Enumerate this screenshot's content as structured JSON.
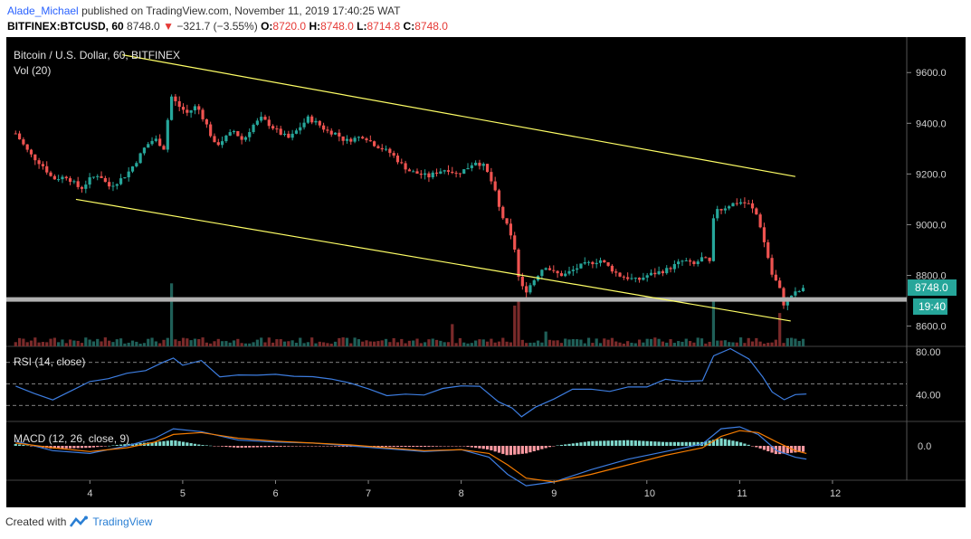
{
  "header": {
    "author": "Alade_Michael",
    "published_text": "published on TradingView.com, November 11, 2019 17:40:25 WAT",
    "symbol": "BITFINEX:BTCUSD, 60",
    "last": "8748.0",
    "change_arrow": "▼",
    "change": "−321.7 (−3.55%)",
    "o_label": "O:",
    "o": "8720.0",
    "h_label": "H:",
    "h": "8748.0",
    "l_label": "L:",
    "l": "8714.8",
    "c_label": "C:",
    "c": "8748.0"
  },
  "main_pane": {
    "title": "Bitcoin / U.S. Dollar, 60, BITFINEX",
    "vol_label": "Vol (20)",
    "price_badge": "8748.0",
    "timer_badge": "19:40"
  },
  "rsi_pane": {
    "label": "RSI (14, close)"
  },
  "macd_pane": {
    "label": "MACD (12, 26, close, 9)"
  },
  "footer": {
    "created_with": "Created with",
    "brand": "TradingView"
  },
  "colors": {
    "background": "#000000",
    "up": "#26a69a",
    "down": "#ef5350",
    "channel": "#ffff66",
    "support": "#b0b0b0",
    "rsi": "#3d7de0",
    "macd": "#3d7de0",
    "signal": "#f57c00"
  },
  "chart_data": [
    {
      "type": "candlestick",
      "title": "Bitcoin / U.S. Dollar, 60, BITFINEX",
      "x_ticks": [
        "4",
        "5",
        "6",
        "7",
        "8",
        "9",
        "10",
        "11",
        "12"
      ],
      "y_ticks": [
        "9600.0",
        "9400.0",
        "9200.0",
        "9000.0",
        "8800.0",
        "8600.0"
      ],
      "ylim": [
        8520,
        9740
      ],
      "close_path": [
        [
          3.2,
          9360
        ],
        [
          3.35,
          9280
        ],
        [
          3.5,
          9230
        ],
        [
          3.6,
          9180
        ],
        [
          3.75,
          9190
        ],
        [
          3.9,
          9140
        ],
        [
          4.0,
          9180
        ],
        [
          4.1,
          9200
        ],
        [
          4.2,
          9150
        ],
        [
          4.3,
          9170
        ],
        [
          4.4,
          9200
        ],
        [
          4.5,
          9250
        ],
        [
          4.6,
          9310
        ],
        [
          4.7,
          9340
        ],
        [
          4.8,
          9300
        ],
        [
          4.87,
          9510
        ],
        [
          4.95,
          9470
        ],
        [
          5.05,
          9440
        ],
        [
          5.15,
          9470
        ],
        [
          5.25,
          9400
        ],
        [
          5.35,
          9310
        ],
        [
          5.45,
          9340
        ],
        [
          5.55,
          9370
        ],
        [
          5.65,
          9330
        ],
        [
          5.75,
          9390
        ],
        [
          5.85,
          9420
        ],
        [
          5.95,
          9390
        ],
        [
          6.05,
          9360
        ],
        [
          6.15,
          9340
        ],
        [
          6.25,
          9380
        ],
        [
          6.35,
          9420
        ],
        [
          6.45,
          9400
        ],
        [
          6.55,
          9370
        ],
        [
          6.65,
          9360
        ],
        [
          6.75,
          9330
        ],
        [
          6.85,
          9340
        ],
        [
          6.95,
          9350
        ],
        [
          7.05,
          9320
        ],
        [
          7.15,
          9300
        ],
        [
          7.25,
          9280
        ],
        [
          7.35,
          9240
        ],
        [
          7.45,
          9210
        ],
        [
          7.55,
          9200
        ],
        [
          7.65,
          9190
        ],
        [
          7.75,
          9210
        ],
        [
          7.85,
          9220
        ],
        [
          7.95,
          9200
        ],
        [
          8.05,
          9220
        ],
        [
          8.15,
          9250
        ],
        [
          8.25,
          9230
        ],
        [
          8.35,
          9150
        ],
        [
          8.42,
          9050
        ],
        [
          8.5,
          8990
        ],
        [
          8.58,
          8900
        ],
        [
          8.63,
          8760
        ],
        [
          8.7,
          8740
        ],
        [
          8.8,
          8790
        ],
        [
          8.9,
          8840
        ],
        [
          9.0,
          8810
        ],
        [
          9.1,
          8800
        ],
        [
          9.2,
          8820
        ],
        [
          9.3,
          8840
        ],
        [
          9.4,
          8850
        ],
        [
          9.5,
          8860
        ],
        [
          9.6,
          8830
        ],
        [
          9.7,
          8800
        ],
        [
          9.8,
          8790
        ],
        [
          9.9,
          8780
        ],
        [
          10.0,
          8800
        ],
        [
          10.1,
          8810
        ],
        [
          10.2,
          8820
        ],
        [
          10.3,
          8840
        ],
        [
          10.4,
          8860
        ],
        [
          10.5,
          8840
        ],
        [
          10.6,
          8870
        ],
        [
          10.68,
          8850
        ],
        [
          10.73,
          9070
        ],
        [
          10.8,
          9060
        ],
        [
          10.9,
          9080
        ],
        [
          11.0,
          9090
        ],
        [
          11.1,
          9080
        ],
        [
          11.2,
          9030
        ],
        [
          11.25,
          8950
        ],
        [
          11.3,
          8880
        ],
        [
          11.35,
          8800
        ],
        [
          11.42,
          8760
        ],
        [
          11.48,
          8680
        ],
        [
          11.55,
          8720
        ],
        [
          11.65,
          8740
        ],
        [
          11.72,
          8748
        ]
      ],
      "volume_spikes": [
        [
          4.87,
          0.85
        ],
        [
          8.58,
          0.55
        ],
        [
          8.6,
          0.62
        ],
        [
          10.7,
          0.62
        ],
        [
          11.45,
          0.45
        ],
        [
          8.9,
          0.2
        ],
        [
          7.9,
          0.3
        ]
      ],
      "channel_upper": [
        [
          4.35,
          9670
        ],
        [
          11.6,
          9190
        ]
      ],
      "channel_lower": [
        [
          3.85,
          9100
        ],
        [
          11.55,
          8620
        ]
      ],
      "support_level": 8705,
      "last_price": 8748.0
    },
    {
      "type": "line",
      "title": "RSI (14, close)",
      "y_ticks": [
        "80.00",
        "40.00"
      ],
      "ylim": [
        15,
        85
      ],
      "levels": [
        70,
        50,
        30
      ],
      "values": [
        [
          3.2,
          48
        ],
        [
          3.4,
          42
        ],
        [
          3.6,
          38
        ],
        [
          3.8,
          45
        ],
        [
          4.0,
          50
        ],
        [
          4.2,
          55
        ],
        [
          4.4,
          58
        ],
        [
          4.6,
          62
        ],
        [
          4.8,
          68
        ],
        [
          4.9,
          72
        ],
        [
          5.0,
          65
        ],
        [
          5.2,
          70
        ],
        [
          5.4,
          55
        ],
        [
          5.6,
          60
        ],
        [
          5.8,
          58
        ],
        [
          6.0,
          56
        ],
        [
          6.2,
          60
        ],
        [
          6.4,
          57
        ],
        [
          6.6,
          52
        ],
        [
          6.8,
          50
        ],
        [
          7.0,
          48
        ],
        [
          7.2,
          42
        ],
        [
          7.4,
          40
        ],
        [
          7.6,
          38
        ],
        [
          7.8,
          45
        ],
        [
          8.0,
          50
        ],
        [
          8.2,
          45
        ],
        [
          8.4,
          35
        ],
        [
          8.55,
          25
        ],
        [
          8.65,
          22
        ],
        [
          8.8,
          30
        ],
        [
          9.0,
          38
        ],
        [
          9.2,
          45
        ],
        [
          9.4,
          48
        ],
        [
          9.6,
          44
        ],
        [
          9.8,
          46
        ],
        [
          10.0,
          50
        ],
        [
          10.2,
          52
        ],
        [
          10.4,
          55
        ],
        [
          10.6,
          52
        ],
        [
          10.72,
          78
        ],
        [
          10.9,
          80
        ],
        [
          11.1,
          74
        ],
        [
          11.25,
          55
        ],
        [
          11.35,
          40
        ],
        [
          11.48,
          35
        ],
        [
          11.6,
          38
        ],
        [
          11.72,
          42
        ]
      ]
    },
    {
      "type": "line",
      "title": "MACD (12, 26, close, 9)",
      "y_ticks": [
        "0.0"
      ],
      "series": [
        {
          "name": "MACD",
          "values": [
            [
              3.2,
              5
            ],
            [
              3.6,
              -5
            ],
            [
              4.0,
              -8
            ],
            [
              4.4,
              0
            ],
            [
              4.7,
              8
            ],
            [
              4.9,
              18
            ],
            [
              5.2,
              15
            ],
            [
              5.6,
              6
            ],
            [
              6.0,
              4
            ],
            [
              6.4,
              3
            ],
            [
              6.8,
              0
            ],
            [
              7.2,
              -3
            ],
            [
              7.6,
              -6
            ],
            [
              8.0,
              -4
            ],
            [
              8.3,
              -12
            ],
            [
              8.5,
              -30
            ],
            [
              8.7,
              -42
            ],
            [
              9.0,
              -38
            ],
            [
              9.4,
              -25
            ],
            [
              9.8,
              -14
            ],
            [
              10.2,
              -6
            ],
            [
              10.6,
              2
            ],
            [
              10.8,
              18
            ],
            [
              11.0,
              20
            ],
            [
              11.2,
              12
            ],
            [
              11.4,
              -5
            ],
            [
              11.6,
              -12
            ],
            [
              11.72,
              -14
            ]
          ]
        },
        {
          "name": "Signal",
          "values": [
            [
              3.2,
              3
            ],
            [
              3.6,
              -2
            ],
            [
              4.0,
              -6
            ],
            [
              4.4,
              -2
            ],
            [
              4.7,
              4
            ],
            [
              4.9,
              12
            ],
            [
              5.2,
              14
            ],
            [
              5.6,
              8
            ],
            [
              6.0,
              5
            ],
            [
              6.4,
              3
            ],
            [
              6.8,
              1
            ],
            [
              7.2,
              -2
            ],
            [
              7.6,
              -5
            ],
            [
              8.0,
              -4
            ],
            [
              8.3,
              -8
            ],
            [
              8.5,
              -20
            ],
            [
              8.7,
              -34
            ],
            [
              9.0,
              -38
            ],
            [
              9.4,
              -30
            ],
            [
              9.8,
              -20
            ],
            [
              10.2,
              -10
            ],
            [
              10.6,
              -2
            ],
            [
              10.8,
              10
            ],
            [
              11.0,
              16
            ],
            [
              11.2,
              14
            ],
            [
              11.4,
              4
            ],
            [
              11.6,
              -5
            ],
            [
              11.72,
              -8
            ]
          ]
        }
      ]
    }
  ]
}
